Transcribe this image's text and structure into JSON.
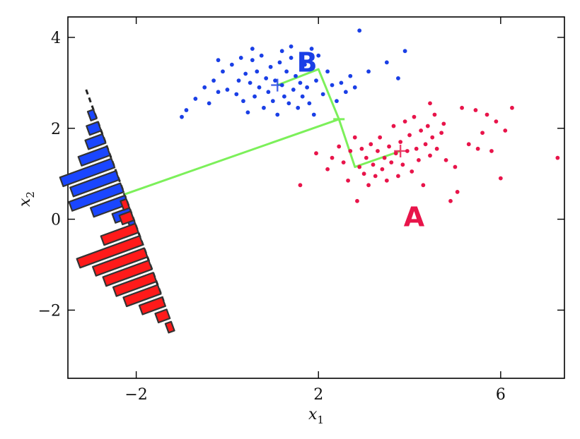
{
  "chart_data": {
    "type": "scatter",
    "xlabel": "x",
    "xlabel_sub": "1",
    "ylabel": "x",
    "ylabel_sub": "2",
    "xlim": [
      -3.5,
      7.4
    ],
    "ylim": [
      -3.5,
      4.45
    ],
    "xticks": [
      -2,
      2,
      6
    ],
    "yticks": [
      4,
      2,
      0,
      -2
    ],
    "xtick_labels": [
      "−2",
      "2",
      "6"
    ],
    "ytick_labels": [
      "4",
      "2",
      "0",
      "−2"
    ],
    "colors": {
      "A": "#e8144a",
      "B": "#1a3fe6",
      "projection": "#7cf05a",
      "hist_A": "#ff1a1a",
      "hist_B": "#1a46ff"
    },
    "series": [
      {
        "name": "B",
        "label_pos": [
          1.75,
          3.25
        ],
        "mean": [
          1.1,
          2.95
        ],
        "points": [
          [
            -0.4,
            2.55
          ],
          [
            -0.7,
            2.65
          ],
          [
            -0.9,
            2.4
          ],
          [
            -1.0,
            2.25
          ],
          [
            -0.5,
            2.9
          ],
          [
            -0.3,
            3.05
          ],
          [
            -0.2,
            2.8
          ],
          [
            -0.1,
            3.25
          ],
          [
            0.0,
            2.85
          ],
          [
            0.1,
            3.4
          ],
          [
            0.2,
            2.75
          ],
          [
            0.25,
            3.05
          ],
          [
            0.3,
            3.55
          ],
          [
            0.35,
            2.6
          ],
          [
            0.4,
            3.2
          ],
          [
            0.45,
            2.35
          ],
          [
            0.5,
            3.0
          ],
          [
            0.55,
            3.5
          ],
          [
            0.6,
            2.7
          ],
          [
            0.65,
            3.25
          ],
          [
            0.7,
            2.9
          ],
          [
            0.75,
            3.6
          ],
          [
            0.8,
            2.45
          ],
          [
            0.85,
            3.1
          ],
          [
            0.9,
            2.8
          ],
          [
            0.95,
            3.35
          ],
          [
            1.0,
            2.6
          ],
          [
            1.05,
            3.05
          ],
          [
            1.1,
            2.3
          ],
          [
            1.15,
            3.45
          ],
          [
            1.2,
            2.95
          ],
          [
            1.25,
            2.7
          ],
          [
            1.3,
            3.25
          ],
          [
            1.35,
            2.55
          ],
          [
            1.4,
            3.55
          ],
          [
            1.45,
            2.85
          ],
          [
            1.5,
            3.15
          ],
          [
            1.55,
            2.45
          ],
          [
            1.6,
            3.0
          ],
          [
            1.65,
            2.7
          ],
          [
            1.7,
            3.4
          ],
          [
            1.75,
            2.9
          ],
          [
            1.8,
            2.55
          ],
          [
            1.85,
            3.75
          ],
          [
            1.9,
            2.3
          ],
          [
            1.95,
            3.05
          ],
          [
            2.0,
            3.6
          ],
          [
            2.1,
            2.75
          ],
          [
            2.2,
            3.25
          ],
          [
            2.3,
            2.95
          ],
          [
            2.4,
            2.6
          ],
          [
            2.5,
            3.0
          ],
          [
            2.6,
            2.8
          ],
          [
            2.7,
            3.15
          ],
          [
            2.8,
            2.9
          ],
          [
            2.9,
            4.15
          ],
          [
            3.1,
            3.25
          ],
          [
            3.5,
            3.45
          ],
          [
            3.75,
            3.1
          ],
          [
            3.9,
            3.7
          ],
          [
            1.4,
            3.8
          ],
          [
            1.2,
            3.7
          ],
          [
            0.55,
            3.75
          ],
          [
            -0.2,
            3.5
          ]
        ]
      },
      {
        "name": "A",
        "label_pos": [
          4.1,
          -0.15
        ],
        "mean": [
          3.8,
          1.5
        ],
        "points": [
          [
            1.6,
            0.75
          ],
          [
            1.95,
            1.45
          ],
          [
            2.2,
            1.1
          ],
          [
            2.3,
            1.35
          ],
          [
            2.45,
            1.6
          ],
          [
            2.55,
            1.25
          ],
          [
            2.65,
            0.85
          ],
          [
            2.7,
            1.5
          ],
          [
            2.8,
            1.8
          ],
          [
            2.85,
            0.4
          ],
          [
            2.9,
            1.15
          ],
          [
            2.95,
            1.55
          ],
          [
            3.0,
            1.0
          ],
          [
            3.05,
            1.35
          ],
          [
            3.1,
            0.75
          ],
          [
            3.15,
            1.65
          ],
          [
            3.2,
            1.2
          ],
          [
            3.25,
            0.95
          ],
          [
            3.3,
            1.5
          ],
          [
            3.35,
            1.8
          ],
          [
            3.4,
            1.1
          ],
          [
            3.45,
            1.35
          ],
          [
            3.5,
            0.85
          ],
          [
            3.55,
            1.6
          ],
          [
            3.6,
            1.25
          ],
          [
            3.65,
            2.05
          ],
          [
            3.7,
            1.45
          ],
          [
            3.75,
            0.95
          ],
          [
            3.8,
            1.7
          ],
          [
            3.85,
            1.2
          ],
          [
            3.9,
            2.15
          ],
          [
            3.95,
            1.5
          ],
          [
            4.0,
            1.85
          ],
          [
            4.05,
            1.05
          ],
          [
            4.1,
            2.25
          ],
          [
            4.15,
            1.55
          ],
          [
            4.2,
            1.3
          ],
          [
            4.25,
            1.95
          ],
          [
            4.3,
            0.75
          ],
          [
            4.35,
            1.65
          ],
          [
            4.4,
            2.05
          ],
          [
            4.45,
            1.4
          ],
          [
            4.5,
            1.8
          ],
          [
            4.55,
            2.3
          ],
          [
            4.6,
            1.55
          ],
          [
            4.7,
            1.9
          ],
          [
            4.75,
            2.1
          ],
          [
            4.8,
            1.3
          ],
          [
            4.9,
            0.4
          ],
          [
            5.0,
            1.15
          ],
          [
            5.05,
            0.6
          ],
          [
            5.15,
            2.45
          ],
          [
            5.3,
            1.65
          ],
          [
            5.45,
            2.4
          ],
          [
            5.5,
            1.55
          ],
          [
            5.6,
            1.9
          ],
          [
            5.7,
            2.3
          ],
          [
            5.8,
            1.5
          ],
          [
            5.9,
            2.15
          ],
          [
            6.0,
            0.9
          ],
          [
            6.1,
            1.95
          ],
          [
            6.25,
            2.45
          ],
          [
            7.25,
            1.35
          ],
          [
            4.45,
            2.55
          ]
        ]
      }
    ],
    "projection": {
      "path": [
        [
          1.1,
          2.95
        ],
        [
          2.0,
          3.3
        ],
        [
          2.45,
          2.2
        ],
        [
          2.8,
          1.15
        ],
        [
          3.8,
          1.5
        ]
      ],
      "line": [
        [
          -2.25,
          0.55
        ],
        [
          2.45,
          2.2
        ]
      ]
    },
    "projection_axis": {
      "start": [
        -3.1,
        2.85
      ],
      "end": [
        -1.4,
        -1.8
      ]
    },
    "histogram_A": [
      1,
      2,
      6,
      11,
      9,
      8,
      7,
      6,
      4,
      2,
      1
    ],
    "histogram_B": [
      1,
      2,
      3,
      5,
      9,
      8,
      9,
      6,
      3,
      1
    ]
  }
}
